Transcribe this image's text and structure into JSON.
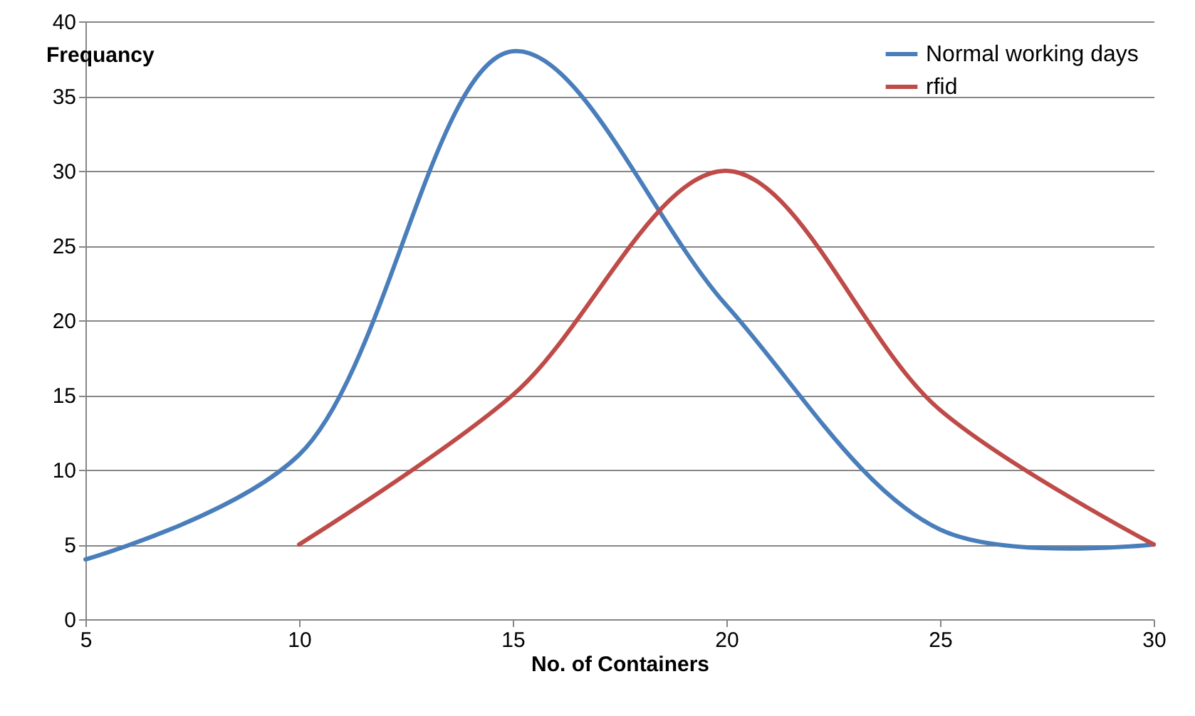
{
  "chart_data": {
    "type": "line",
    "xlabel": "No. of Containers",
    "ylabel": "Frequancy",
    "xlim": [
      5,
      30
    ],
    "xticks": [
      5,
      10,
      15,
      20,
      25,
      30
    ],
    "ylim": [
      0,
      40
    ],
    "yticks": [
      0,
      5,
      10,
      15,
      20,
      25,
      30,
      35,
      40
    ],
    "grid": "y",
    "legend": "top right",
    "marker": "none",
    "line_style": "solid",
    "series": [
      {
        "name": "Normal working days",
        "color": "#4a7ebb",
        "x": [
          5,
          10,
          15,
          20,
          25,
          30
        ],
        "values": [
          4,
          11,
          38,
          21,
          6,
          5
        ]
      },
      {
        "name": "rfid",
        "color": "#be4b48",
        "x": [
          10,
          15,
          20,
          25,
          30
        ],
        "values": [
          5,
          15,
          30,
          14,
          5
        ]
      }
    ]
  }
}
